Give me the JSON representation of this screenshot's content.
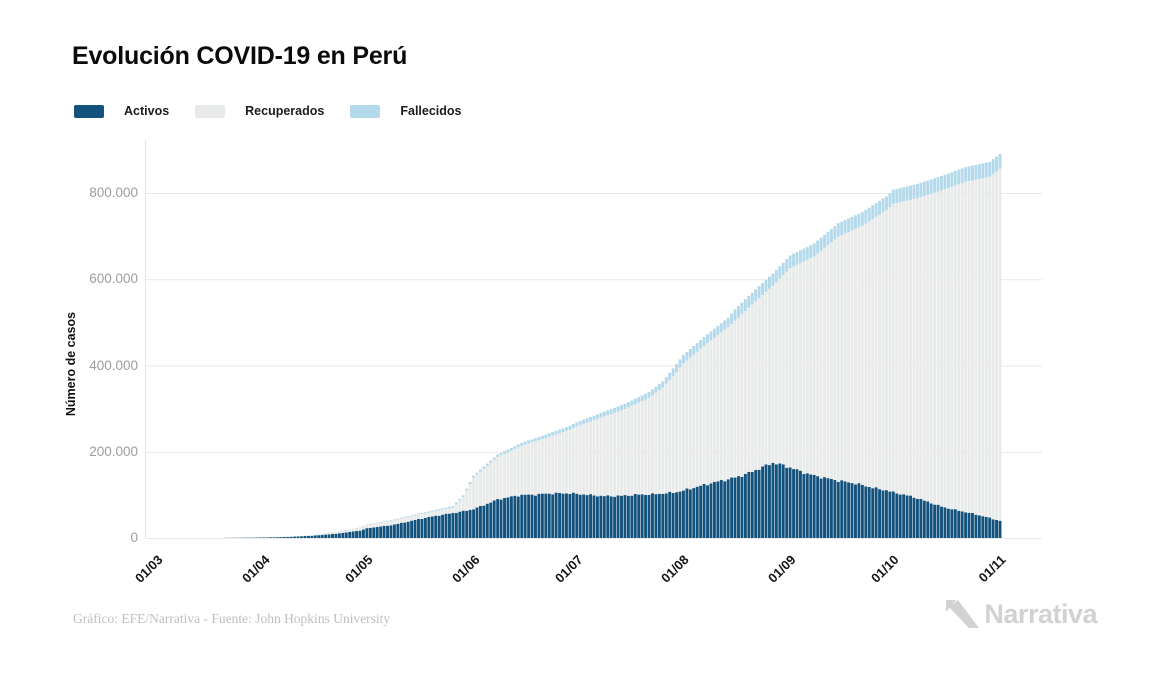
{
  "title": "Evolución COVID-19 en Perú",
  "legend": {
    "items": [
      {
        "label": "Activos",
        "color": "#13527c"
      },
      {
        "label": "Recuperados",
        "color": "#e9eaea"
      },
      {
        "label": "Fallecidos",
        "color": "#b3d9ea"
      }
    ]
  },
  "y_axis": {
    "label": "Número de casos",
    "ticks": [
      {
        "label": "0",
        "value": 0
      },
      {
        "label": "200.000",
        "value": 200000
      },
      {
        "label": "400.000",
        "value": 400000
      },
      {
        "label": "600.000",
        "value": 600000
      },
      {
        "label": "800.000",
        "value": 800000
      }
    ]
  },
  "footer": {
    "credit": "Gráfico: EFE/Narrativa - Fuente: John Hopkins University",
    "brand": "Narrativa"
  },
  "colors": {
    "activos": "#13527c",
    "recuperados": "#e9eaea",
    "fallecidos": "#b3d9ea",
    "gridline": "#e9e9e9",
    "axis_line": "#e3e3e3",
    "tick_text": "#9d9d9d",
    "brand_gray": "#d2d2d2"
  },
  "chart_data": {
    "type": "bar",
    "stacked": true,
    "title": "Evolución COVID-19 en Perú",
    "xlabel": "",
    "ylabel": "Número de casos",
    "ylim": [
      0,
      900000
    ],
    "grid": "horizontal",
    "legend_position": "top-left",
    "x_unit": "days since 01/03/2020, daily bars",
    "days_total": 245,
    "x_ticks": [
      {
        "label": "01/03",
        "day": 0
      },
      {
        "label": "01/04",
        "day": 31
      },
      {
        "label": "01/05",
        "day": 61
      },
      {
        "label": "01/06",
        "day": 92
      },
      {
        "label": "01/07",
        "day": 122
      },
      {
        "label": "01/08",
        "day": 153
      },
      {
        "label": "01/09",
        "day": 184
      },
      {
        "label": "01/10",
        "day": 214
      },
      {
        "label": "01/11",
        "day": 245
      }
    ],
    "series_order": [
      "activos",
      "recuperados",
      "fallecidos"
    ],
    "samples_columns": [
      "day",
      "activos",
      "recuperados",
      "fallecidos"
    ],
    "samples": [
      [
        0,
        0,
        0,
        0
      ],
      [
        7,
        30,
        0,
        0
      ],
      [
        14,
        100,
        10,
        0
      ],
      [
        21,
        400,
        30,
        10
      ],
      [
        28,
        900,
        150,
        40
      ],
      [
        31,
        1300,
        300,
        80
      ],
      [
        38,
        2600,
        800,
        150
      ],
      [
        45,
        5200,
        1500,
        320
      ],
      [
        52,
        10000,
        3500,
        600
      ],
      [
        59,
        17000,
        6500,
        1000
      ],
      [
        61,
        22000,
        8000,
        1300
      ],
      [
        68,
        30000,
        9500,
        1700
      ],
      [
        75,
        42000,
        10500,
        2100
      ],
      [
        82,
        52000,
        12000,
        2800
      ],
      [
        86,
        58000,
        13000,
        3200
      ],
      [
        89,
        63000,
        32000,
        4000
      ],
      [
        92,
        68000,
        72000,
        4600
      ],
      [
        99,
        88000,
        100000,
        5600
      ],
      [
        106,
        100000,
        114000,
        6700
      ],
      [
        113,
        104000,
        128000,
        7700
      ],
      [
        120,
        102000,
        149000,
        9000
      ],
      [
        122,
        101000,
        158000,
        9500
      ],
      [
        129,
        99000,
        180000,
        10800
      ],
      [
        136,
        98000,
        201000,
        12000
      ],
      [
        143,
        100000,
        225000,
        13400
      ],
      [
        147,
        104000,
        245000,
        14100
      ],
      [
        150,
        107000,
        268000,
        18200
      ],
      [
        153,
        111000,
        294000,
        19600
      ],
      [
        160,
        123000,
        329000,
        20700
      ],
      [
        166,
        137000,
        352000,
        21800
      ],
      [
        168,
        142000,
        362000,
        26400
      ],
      [
        174,
        158000,
        391000,
        27600
      ],
      [
        179,
        172000,
        413000,
        28300
      ],
      [
        184,
        163000,
        463000,
        29200
      ],
      [
        191,
        147000,
        506000,
        30000
      ],
      [
        198,
        131000,
        568000,
        31000
      ],
      [
        205,
        123000,
        601000,
        31700
      ],
      [
        212,
        112000,
        648000,
        32300
      ],
      [
        214,
        106000,
        669000,
        32600
      ],
      [
        221,
        91000,
        697000,
        33000
      ],
      [
        228,
        74000,
        732000,
        33400
      ],
      [
        235,
        60000,
        766000,
        33900
      ],
      [
        242,
        46000,
        792000,
        34300
      ],
      [
        245,
        40000,
        816000,
        34600
      ]
    ]
  }
}
